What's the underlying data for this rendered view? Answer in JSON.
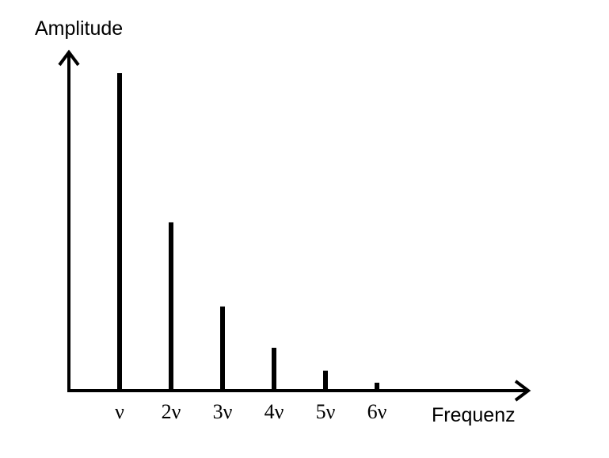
{
  "chart_data": {
    "type": "bar",
    "ylabel": "Amplitude",
    "xlabel": "Frequenz",
    "categories": [
      "ν",
      "2ν",
      "3ν",
      "4ν",
      "5ν",
      "6ν"
    ],
    "values": [
      1.0,
      0.53,
      0.265,
      0.135,
      0.063,
      0.025
    ],
    "ylim": [
      0,
      1.08
    ],
    "grid": false,
    "bar_color": "#000000",
    "axis_color": "#000000"
  }
}
